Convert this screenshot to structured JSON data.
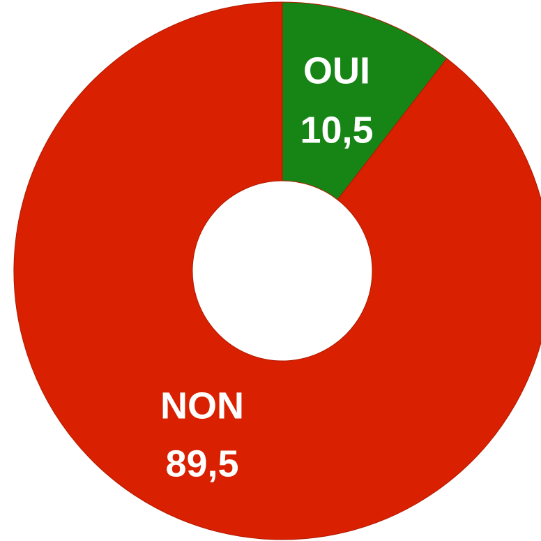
{
  "chart_data": {
    "type": "donut",
    "categories": [
      "OUI",
      "NON"
    ],
    "values": [
      10.5,
      89.5
    ],
    "value_labels": [
      "10,5",
      "89,5"
    ],
    "colors": [
      "#178516",
      "#d92000"
    ]
  }
}
